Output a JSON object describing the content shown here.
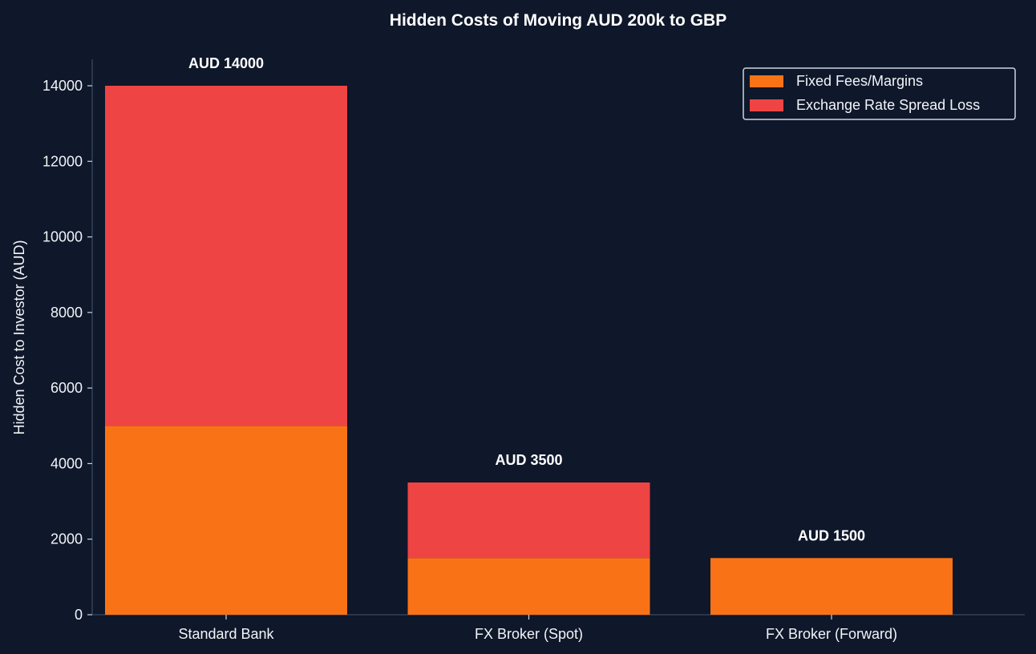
{
  "chart_data": {
    "type": "bar",
    "stacked": true,
    "title": "Hidden Costs of Moving AUD 200k to GBP",
    "xlabel": "",
    "ylabel": "Hidden Cost to Investor (AUD)",
    "categories": [
      "Standard Bank",
      "FX Broker (Spot)",
      "FX Broker (Forward)"
    ],
    "series": [
      {
        "name": "Fixed Fees/Margins",
        "values": [
          5000,
          1500,
          1500
        ],
        "color": "#f97316"
      },
      {
        "name": "Exchange Rate Spread Loss",
        "values": [
          9000,
          2000,
          0
        ],
        "color": "#ef4444"
      }
    ],
    "totals": [
      14000,
      3500,
      1500
    ],
    "total_labels": [
      "AUD 14000",
      "AUD 3500",
      "AUD 1500"
    ],
    "ylim": [
      0,
      14700
    ],
    "yticks": [
      0,
      2000,
      4000,
      6000,
      8000,
      10000,
      12000,
      14000
    ],
    "legend_position": "top-right",
    "grid": false,
    "background_color": "#0f172a",
    "axis_color": "#334155"
  }
}
